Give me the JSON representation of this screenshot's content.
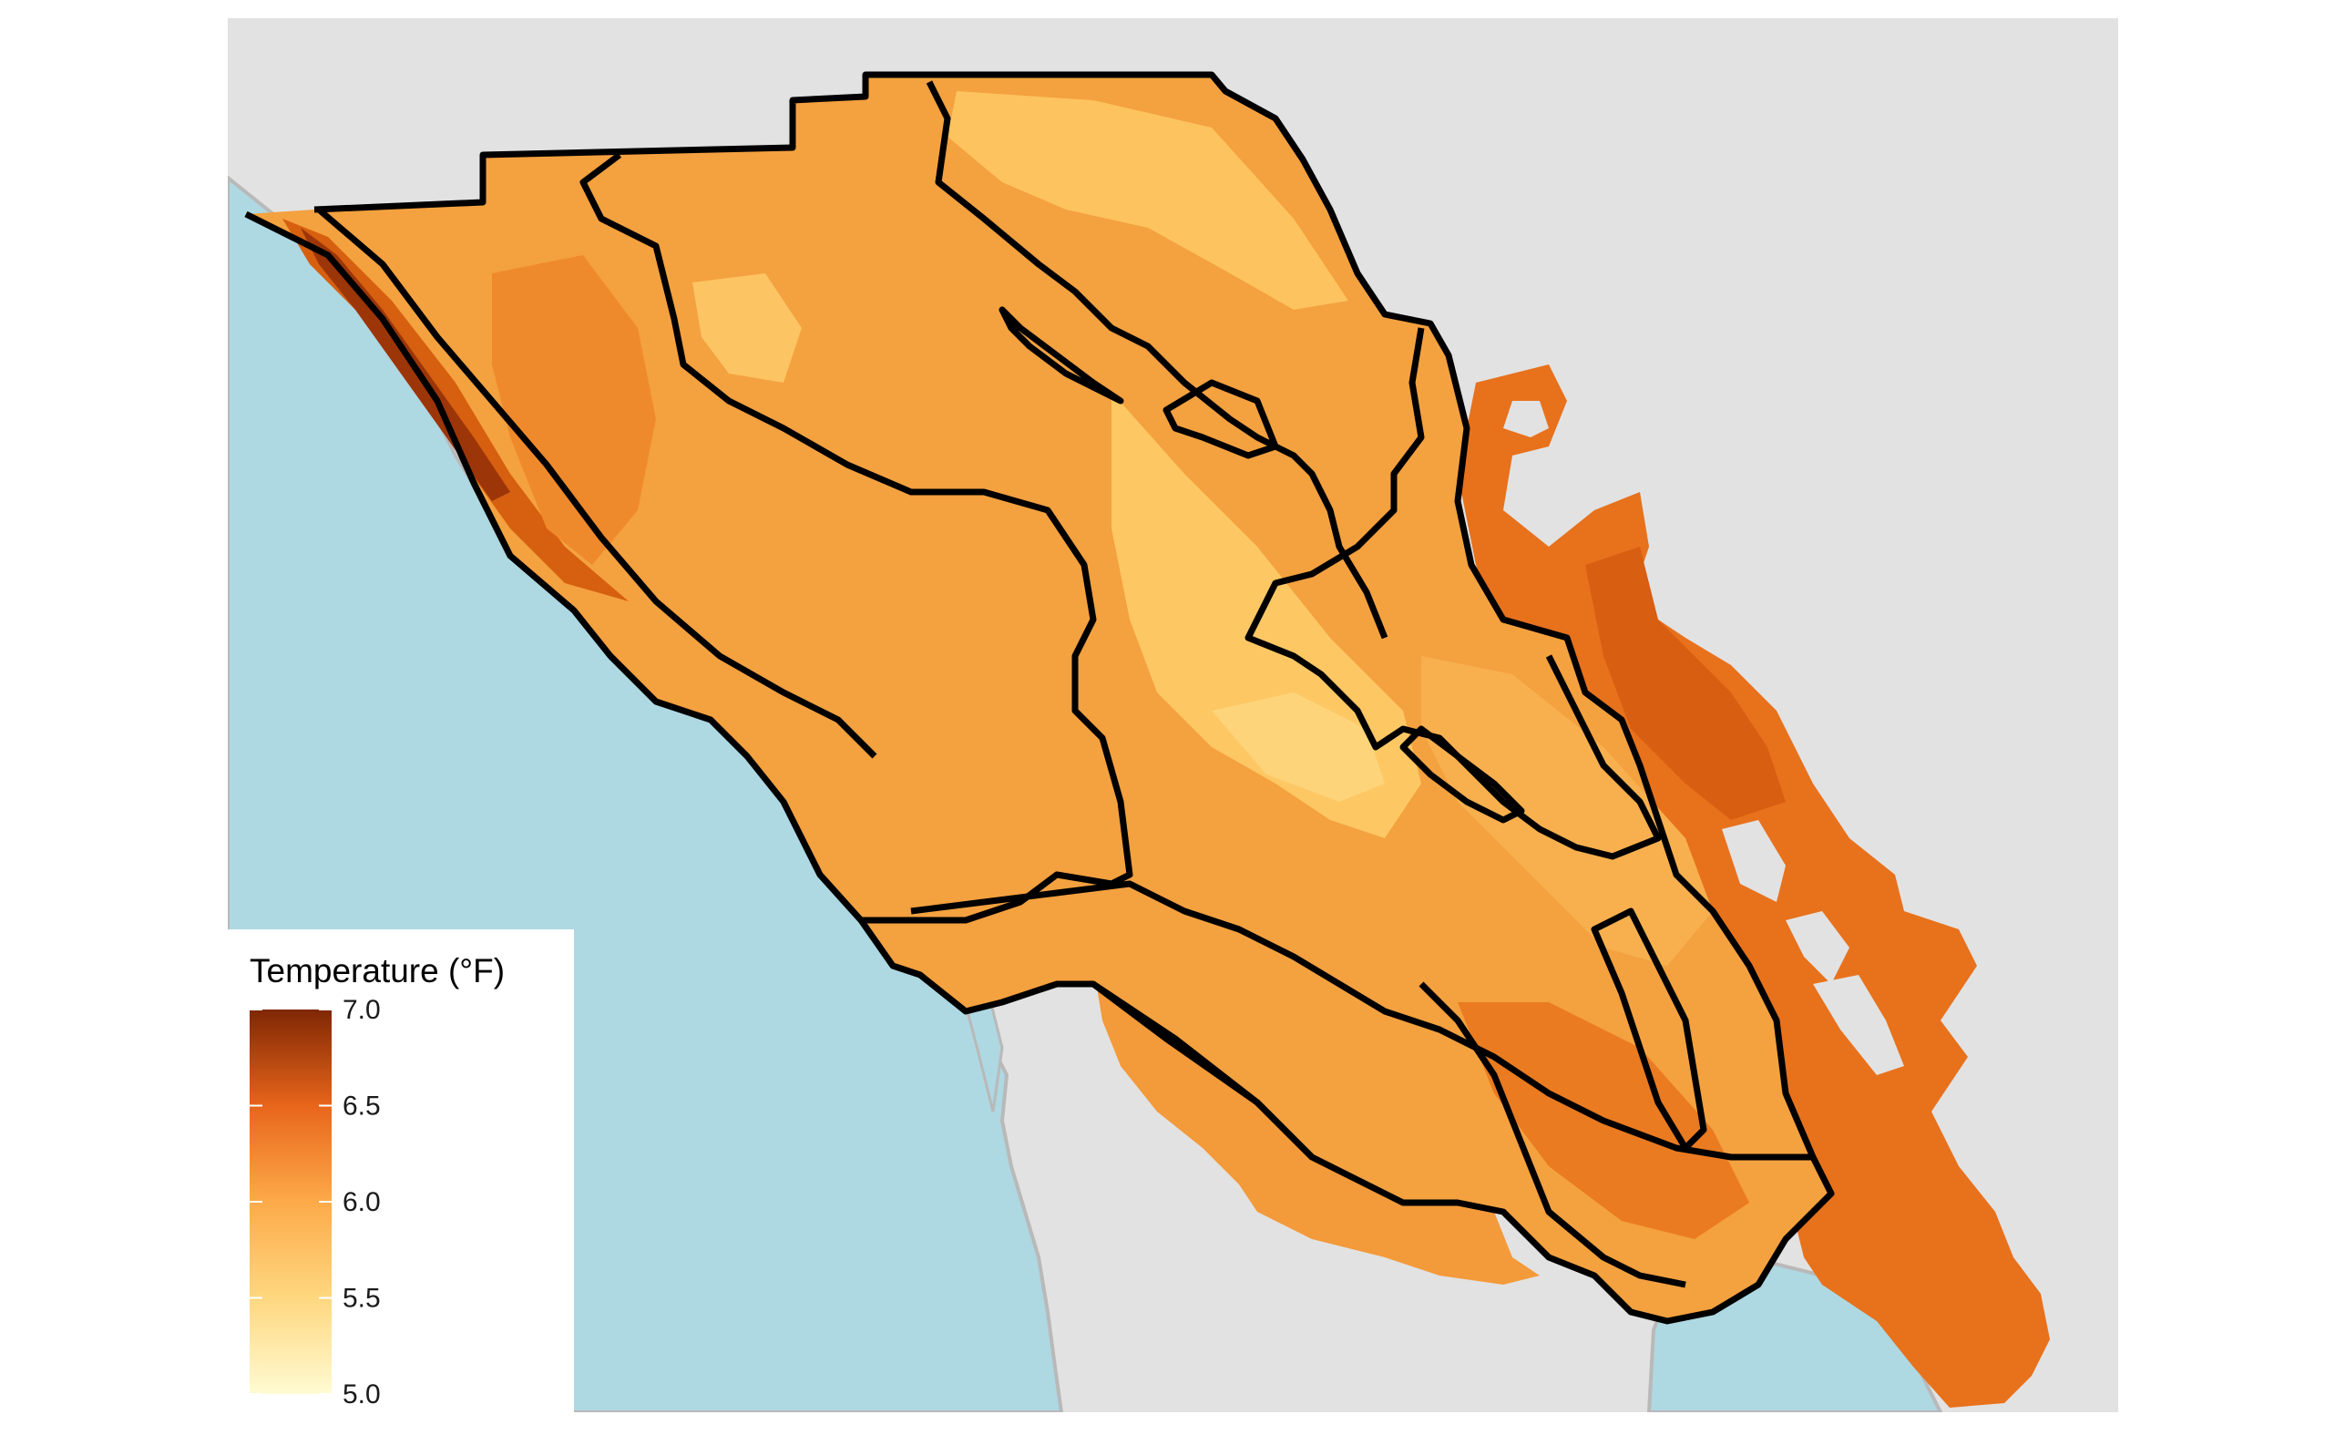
{
  "map": {
    "colors": {
      "background": "#ffffff",
      "land_outside": "#e2e2e2",
      "water": "#aed8e2",
      "coastline": "#b9b9b9",
      "boundary": "#000000"
    },
    "legend": {
      "title": "Temperature (°F)",
      "min": 5.0,
      "max": 7.0,
      "ticks": [
        "7.0",
        "6.5",
        "6.0",
        "5.5",
        "5.0"
      ],
      "color_stops": [
        {
          "value": 5.0,
          "color": "#fffbd2"
        },
        {
          "value": 5.5,
          "color": "#fed77f"
        },
        {
          "value": 6.0,
          "color": "#fdaa49"
        },
        {
          "value": 6.5,
          "color": "#e8651b"
        },
        {
          "value": 7.0,
          "color": "#7f2705"
        }
      ]
    }
  }
}
